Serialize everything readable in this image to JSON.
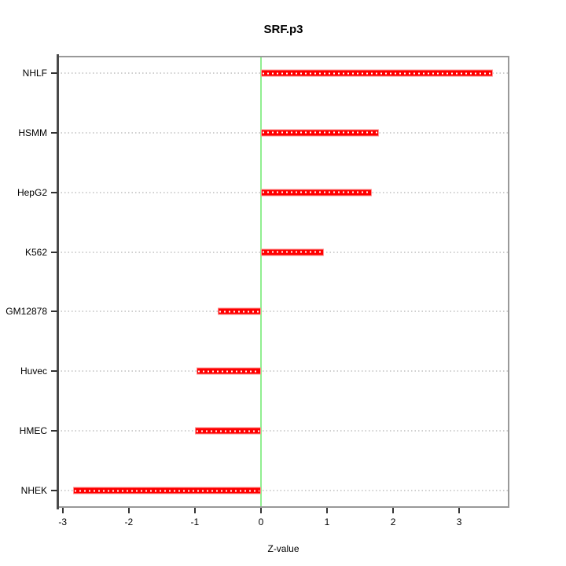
{
  "figure": {
    "title": "SRF.p3",
    "xlabel": "Z-value"
  },
  "chart_data": {
    "type": "bar",
    "orientation": "horizontal",
    "title": "SRF.p3",
    "xlabel": "Z-value",
    "ylabel": "",
    "categories": [
      "NHLF",
      "HSMM",
      "HepG2",
      "K562",
      "GM12878",
      "Huvec",
      "HMEC",
      "NHEK"
    ],
    "values": [
      3.51,
      1.79,
      1.68,
      0.95,
      -0.65,
      -0.98,
      -1.0,
      -2.84
    ],
    "xlim": [
      -3.08,
      3.76
    ],
    "xticks": [
      -3,
      -2,
      -1,
      0,
      1,
      2,
      3
    ],
    "zero_line": 0,
    "grid": true,
    "legend": "none",
    "colors": {
      "bar_fill": "#fe0000",
      "bar_border": "#ff9090",
      "bar_dash": "#ffffff",
      "zero_line": "#90ee90",
      "grid_line": "#cfcfcf",
      "box_border": "#999999",
      "axis_spine": "#4a4a4a",
      "tick": "#333333",
      "text": "#000000"
    }
  }
}
